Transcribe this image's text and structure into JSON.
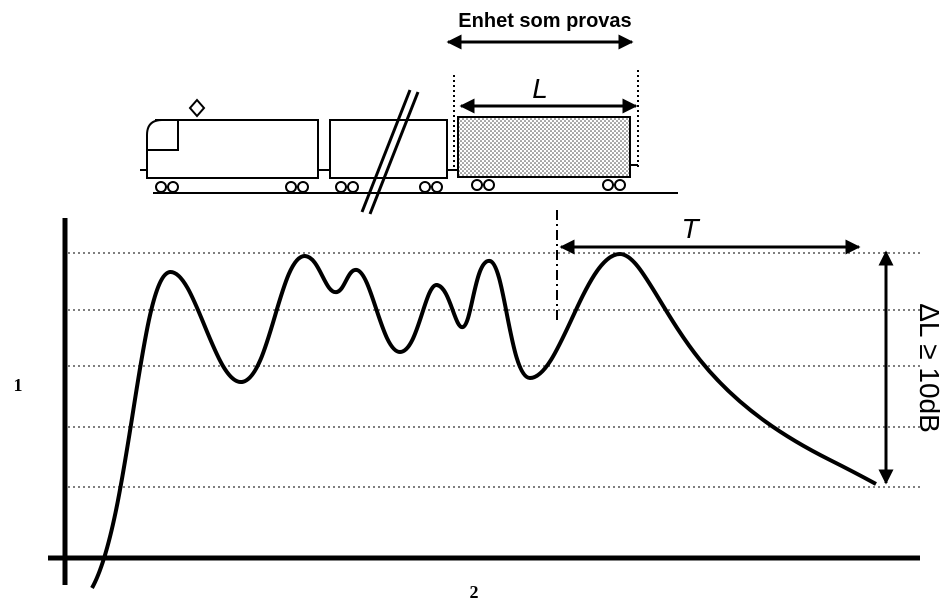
{
  "diagram": {
    "unit_label": "Enhet som provas",
    "length_label": "L",
    "time_label": "T",
    "level_label": "ΔL ≥ 10dB",
    "y_axis_label": "1",
    "x_axis_label": "2"
  }
}
